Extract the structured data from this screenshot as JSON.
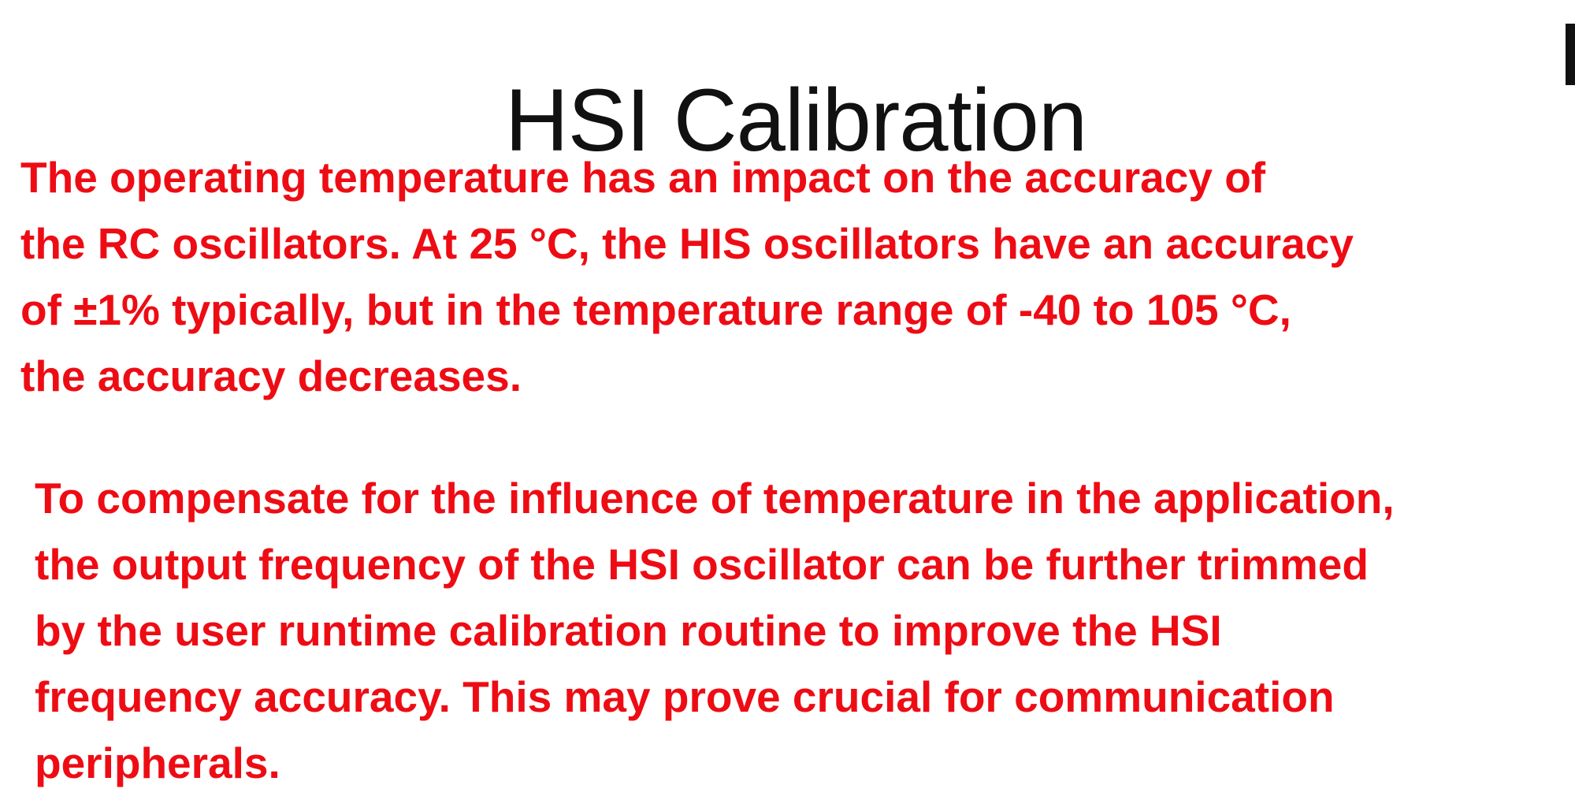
{
  "slide": {
    "title": "HSI Calibration",
    "paragraphs": [
      {
        "lines": [
          "The operating temperature has an impact on the accuracy of",
          "the RC oscillators. At 25 °C, the HIS oscillators have an accuracy",
          "of ±1% typically, but in the temperature range of -40 to 105 °C,",
          "the accuracy decreases."
        ]
      },
      {
        "lines": [
          "To compensate for the influence of temperature in the application,",
          "the output frequency of the HSI oscillator can be further trimmed",
          "by the user runtime calibration routine to improve the HSI",
          "frequency accuracy. This may prove crucial for communication",
          "peripherals."
        ]
      }
    ],
    "colors": {
      "title": "#111111",
      "body_text": "#ee0c14",
      "background": "#ffffff"
    }
  }
}
